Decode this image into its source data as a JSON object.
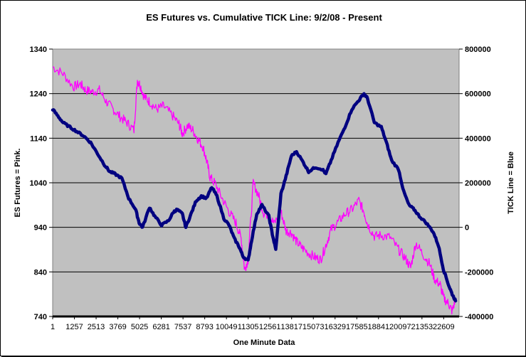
{
  "chart_data": {
    "type": "line",
    "title": "ES Futures vs. Cumulative TICK Line:  9/2/08 - Present",
    "xlabel": "One Minute Data",
    "ylabel_left": "ES Futures = Pink.",
    "ylabel_right": "TICK Line = Blue",
    "ylim_left": [
      740,
      1340
    ],
    "ylim_right": [
      -400000,
      800000
    ],
    "yticks_left": [
      "1340",
      "1240",
      "1140",
      "1040",
      "940",
      "840",
      "740"
    ],
    "yticks_right": [
      "800000",
      "600000",
      "400000",
      "200000",
      "0",
      "-200000",
      "-400000"
    ],
    "xlim": [
      1,
      23500
    ],
    "xtick_labels": [
      "1",
      "1257",
      "2513",
      "3769",
      "5025",
      "6281",
      "7537",
      "8793",
      "10049",
      "11305",
      "12561",
      "13817",
      "15073",
      "16329",
      "17585",
      "18841",
      "20097",
      "21353",
      "22609"
    ],
    "grid": true,
    "series": [
      {
        "name": "ES Futures",
        "axis": "left",
        "color": "#ff00ff",
        "x": [
          1,
          600,
          1200,
          1600,
          1900,
          2300,
          2700,
          3100,
          3500,
          3900,
          4300,
          4700,
          4900,
          5050,
          5300,
          5600,
          6000,
          6400,
          6900,
          7300,
          7500,
          7800,
          8100,
          8400,
          8700,
          8900,
          9100,
          9400,
          9800,
          10200,
          10600,
          10900,
          11100,
          11300,
          11600,
          11900,
          12200,
          12500,
          12800,
          13200,
          13500,
          13800,
          14100,
          14400,
          14800,
          15200,
          15500,
          15800,
          16100,
          16500,
          16900,
          17300,
          17700,
          18000,
          18200,
          18600,
          19000,
          19500,
          20000,
          20400,
          20700,
          21000,
          21400,
          21800,
          22100,
          22400,
          22600,
          22900,
          23100,
          23300
        ],
        "values": [
          1300,
          1285,
          1255,
          1262,
          1248,
          1244,
          1248,
          1222,
          1205,
          1188,
          1175,
          1158,
          1270,
          1260,
          1232,
          1222,
          1205,
          1212,
          1192,
          1172,
          1150,
          1168,
          1158,
          1138,
          1120,
          1090,
          1052,
          1038,
          1005,
          975,
          950,
          915,
          845,
          868,
          1040,
          1012,
          972,
          968,
          948,
          975,
          932,
          928,
          908,
          895,
          882,
          872,
          868,
          900,
          935,
          952,
          970,
          980,
          1000,
          975,
          948,
          920,
          922,
          918,
          890,
          870,
          850,
          905,
          880,
          858,
          822,
          812,
          782,
          768,
          752,
          780
        ]
      },
      {
        "name": "TICK Line",
        "axis": "right",
        "color": "#000080",
        "x": [
          1,
          300,
          600,
          1000,
          1400,
          1800,
          2200,
          2600,
          3000,
          3300,
          3600,
          4000,
          4400,
          4800,
          5000,
          5200,
          5600,
          5900,
          6300,
          6700,
          7000,
          7200,
          7500,
          7700,
          8000,
          8300,
          8600,
          8900,
          9200,
          9500,
          9900,
          10200,
          10500,
          10800,
          11000,
          11300,
          11500,
          11800,
          12100,
          12500,
          12700,
          12900,
          13200,
          13500,
          13800,
          14100,
          14500,
          14800,
          15200,
          15600,
          15800,
          16100,
          16500,
          16900,
          17300,
          17700,
          18000,
          18200,
          18600,
          19000,
          19300,
          19600,
          20000,
          20300,
          20600,
          20900,
          21200,
          21600,
          22000,
          22300,
          22600,
          22900,
          23100,
          23300
        ],
        "values": [
          530000,
          500000,
          470000,
          450000,
          430000,
          410000,
          380000,
          330000,
          280000,
          250000,
          240000,
          220000,
          130000,
          80000,
          20000,
          0,
          90000,
          50000,
          10000,
          30000,
          70000,
          80000,
          60000,
          0,
          60000,
          120000,
          140000,
          130000,
          180000,
          140000,
          40000,
          10000,
          -50000,
          -90000,
          -130000,
          -150000,
          -60000,
          60000,
          100000,
          50000,
          -30000,
          -100000,
          150000,
          230000,
          320000,
          340000,
          290000,
          250000,
          270000,
          260000,
          240000,
          300000,
          380000,
          450000,
          530000,
          570000,
          600000,
          580000,
          470000,
          450000,
          380000,
          300000,
          260000,
          160000,
          100000,
          80000,
          50000,
          20000,
          -20000,
          -80000,
          -190000,
          -260000,
          -300000,
          -330000
        ]
      }
    ]
  }
}
